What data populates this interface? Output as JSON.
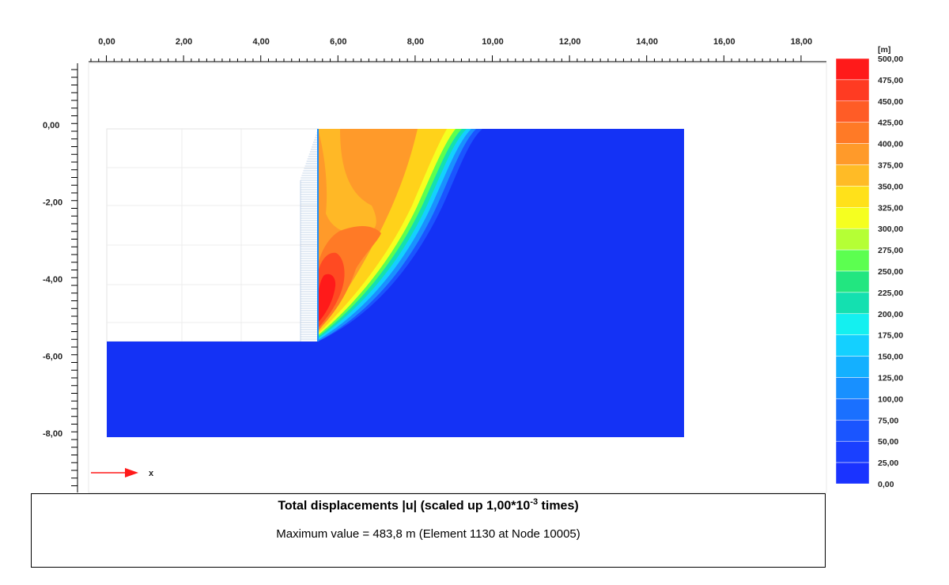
{
  "plot": {
    "x_ticks": [
      "0,00",
      "2,00",
      "4,00",
      "6,00",
      "8,00",
      "10,00",
      "12,00",
      "14,00",
      "16,00",
      "18,00"
    ],
    "y_ticks": [
      "0,00",
      "-2,00",
      "-4,00",
      "-6,00",
      "-8,00"
    ],
    "axis_indicator": "x"
  },
  "legend": {
    "unit": "[m]",
    "labels": [
      "500,00",
      "475,00",
      "450,00",
      "425,00",
      "400,00",
      "375,00",
      "350,00",
      "325,00",
      "300,00",
      "275,00",
      "250,00",
      "225,00",
      "200,00",
      "175,00",
      "150,00",
      "125,00",
      "100,00",
      "75,00",
      "50,00",
      "25,00",
      "0,00"
    ],
    "colors": [
      "#ff1a1a",
      "#ff3b22",
      "#ff5c26",
      "#ff7a26",
      "#ff9a2a",
      "#ffbb26",
      "#ffe11a",
      "#f5ff20",
      "#b5ff35",
      "#5cff50",
      "#22e680",
      "#14e0b0",
      "#14f0f0",
      "#14d0ff",
      "#14b0ff",
      "#1890ff",
      "#1a70ff",
      "#1a55ff",
      "#1a40ff",
      "#1a33ff"
    ]
  },
  "caption": {
    "title_prefix": "Total displacements |u| (scaled up 1,00*10",
    "title_exponent": "-3",
    "title_suffix": " times)",
    "max_value": "Maximum value = 483,8 m (Element 1130 at Node 10005)"
  },
  "colors": {
    "blue_field": "#1432f5",
    "arrow": "#ff1a1a"
  }
}
